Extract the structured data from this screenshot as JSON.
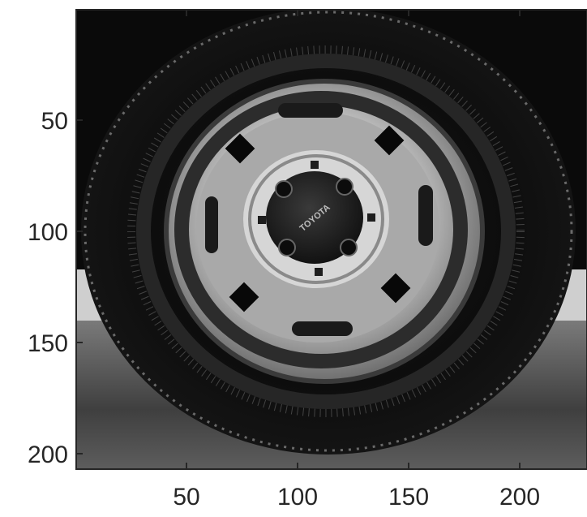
{
  "figure": {
    "image_description_id": "grayscale-tire-on-wheel",
    "axes": {
      "x_ticks": [
        "50",
        "100",
        "150",
        "200"
      ],
      "y_ticks": [
        "50",
        "100",
        "150",
        "200"
      ]
    },
    "hubcap_text": "TOYOTA"
  }
}
